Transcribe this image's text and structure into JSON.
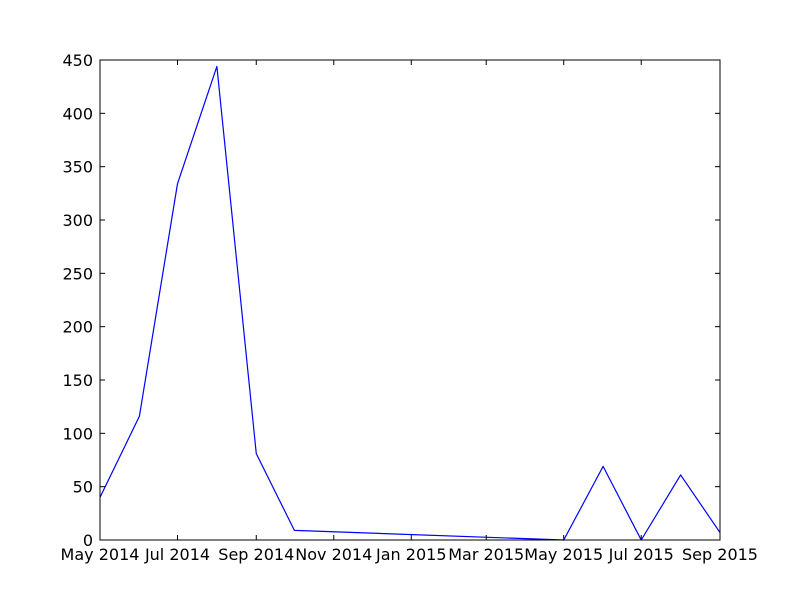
{
  "chart_data": {
    "type": "line",
    "title": "",
    "xlabel": "",
    "ylabel": "",
    "x_start": "2014-05-01",
    "x_end": "2015-09-01",
    "xlim": [
      "2014-05-01",
      "2015-09-01"
    ],
    "ylim": [
      0,
      450
    ],
    "grid": false,
    "legend": "none",
    "x_ticks": [
      {
        "date": "2014-05-01",
        "label": "May 2014"
      },
      {
        "date": "2014-07-01",
        "label": "Jul 2014"
      },
      {
        "date": "2014-09-01",
        "label": "Sep 2014"
      },
      {
        "date": "2014-11-01",
        "label": "Nov 2014"
      },
      {
        "date": "2015-01-01",
        "label": "Jan 2015"
      },
      {
        "date": "2015-03-01",
        "label": "Mar 2015"
      },
      {
        "date": "2015-05-01",
        "label": "May 2015"
      },
      {
        "date": "2015-07-01",
        "label": "Jul 2015"
      },
      {
        "date": "2015-09-01",
        "label": "Sep 2015"
      }
    ],
    "y_ticks": [
      0,
      50,
      100,
      150,
      200,
      250,
      300,
      350,
      400,
      450
    ],
    "series": [
      {
        "color": "#0000ff",
        "points": [
          {
            "x": "2014-05-01",
            "y": 40
          },
          {
            "x": "2014-06-01",
            "y": 116
          },
          {
            "x": "2014-07-01",
            "y": 334
          },
          {
            "x": "2014-08-01",
            "y": 444
          },
          {
            "x": "2014-09-01",
            "y": 81
          },
          {
            "x": "2014-10-01",
            "y": 9
          },
          {
            "x": "2015-05-01",
            "y": 0
          },
          {
            "x": "2015-06-01",
            "y": 69
          },
          {
            "x": "2015-07-01",
            "y": 0
          },
          {
            "x": "2015-08-01",
            "y": 61
          },
          {
            "x": "2015-09-01",
            "y": 7
          }
        ]
      }
    ]
  }
}
